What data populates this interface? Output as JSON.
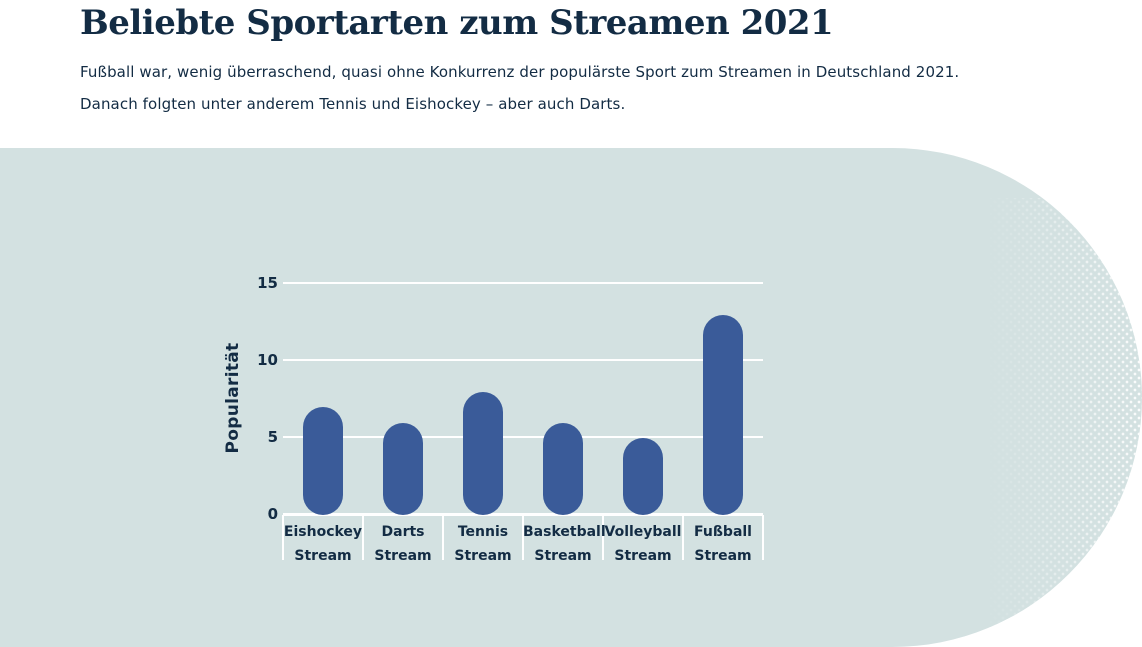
{
  "page": {
    "title": "Beliebte Sportarten zum Streamen 2021",
    "subtitle_lines": [
      "Fußball war, wenig überraschend, quasi ohne Konkurrenz der populärste Sport zum Streamen in Deutschland 2021.",
      "Danach folgten unter anderem Tennis und Eishockey – aber auch Darts."
    ]
  },
  "theme": {
    "page_bg": "#ffffff",
    "panel_bg": "#d3e1e1",
    "bar_color": "#3a5b99",
    "text_navy": "#132c44",
    "grid_color": "#ffffff"
  },
  "chart_data": {
    "type": "bar",
    "title": "Beliebte Sportarten zum Streamen 2021",
    "categories": [
      "Eishockey Stream",
      "Darts Stream",
      "Tennis Stream",
      "Basketball Stream",
      "Volleyball Stream",
      "Fußball Stream"
    ],
    "values": [
      7,
      6,
      8,
      6,
      5,
      13
    ],
    "xlabel": "",
    "ylabel": "Popularität",
    "yticks": [
      0,
      5,
      10,
      15
    ],
    "ylim": [
      0,
      15
    ],
    "grid": "horizontal-white",
    "legend": "none",
    "bar_style": "rounded-pill"
  }
}
